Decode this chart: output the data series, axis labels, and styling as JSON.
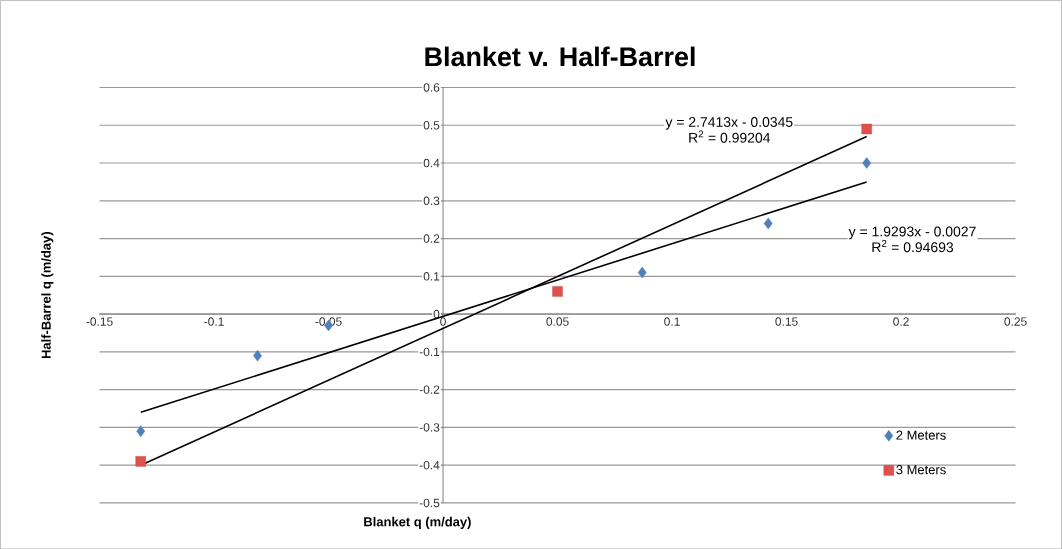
{
  "chart_data": {
    "type": "scatter",
    "title": "Blanket v. Half-Barrel",
    "xlabel": "Blanket q (m/day)",
    "ylabel": "Half-Barrel q (m/day)",
    "series": [
      {
        "name": "2 Meters",
        "color": "#4f81bd",
        "marker": "diamond",
        "x": [
          -0.132,
          -0.081,
          -0.05,
          0.087,
          0.142,
          0.185
        ],
        "values": [
          -0.31,
          -0.11,
          -0.03,
          0.11,
          0.24,
          0.4
        ]
      },
      {
        "name": "3 Meters",
        "color": "#e0504d",
        "marker": "square",
        "x": [
          -0.132,
          0.05,
          0.185
        ],
        "values": [
          -0.39,
          0.06,
          0.49
        ]
      },
      {
        "type": "line",
        "color": "#000000",
        "marker": "none",
        "x": [
          -0.132,
          0.185
        ],
        "values": [
          -0.26,
          0.35
        ]
      },
      {
        "type": "line",
        "color": "#000000",
        "marker": "none",
        "x": [
          -0.132,
          0.185
        ],
        "values": [
          -0.4,
          0.47
        ]
      }
    ],
    "annotations": [
      "y = 2.7413x - 0.0345",
      "R$^{2}$ = 0.99204",
      "y = 1.9293x - 0.0027",
      "R$^{2}$ = 0.94693"
    ],
    "xlim": [
      -0.15,
      0.25
    ],
    "ylim": [
      -0.5,
      0.6
    ],
    "xticks": [
      -0.15,
      -0.1,
      -0.05,
      0,
      0.05,
      0.1,
      0.15,
      0.2,
      0.25
    ],
    "yticks": [
      -0.5,
      -0.4,
      -0.3,
      -0.2,
      -0.1,
      0,
      0.1,
      0.2,
      0.3,
      0.4,
      0.5,
      0.6
    ],
    "grid": "y",
    "legend": "bottom right"
  }
}
